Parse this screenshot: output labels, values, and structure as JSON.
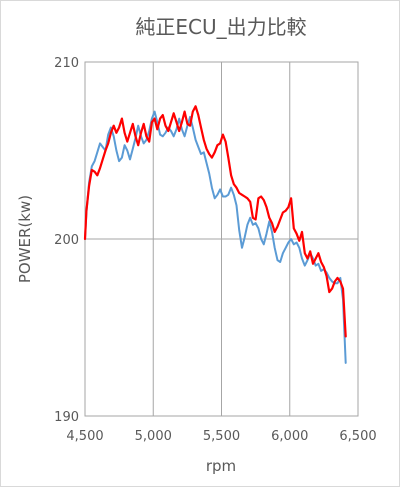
{
  "chart_data": {
    "type": "line",
    "title": "純正ECU_出力比較",
    "xlabel": "rpm",
    "ylabel": "POWER(kw)",
    "xlim": [
      4500,
      6500
    ],
    "ylim": [
      190,
      210
    ],
    "x_ticks": [
      4500,
      5000,
      5500,
      6000,
      6500
    ],
    "x_tick_labels": [
      "4,500",
      "5,000",
      "5,500",
      "6,000",
      "6,500"
    ],
    "y_ticks": [
      190,
      200,
      210
    ],
    "y_tick_labels": [
      "190",
      "200",
      "210"
    ],
    "grid": true,
    "legend": "none",
    "colors": {
      "series_blue": "#5b9bd5",
      "series_red": "#ff0000",
      "grid": "#a6a6a6",
      "text": "#595959"
    },
    "series": [
      {
        "color": "#5b9bd5",
        "points": [
          [
            4500,
            200.0
          ],
          [
            4510,
            201.5
          ],
          [
            4530,
            203.2
          ],
          [
            4550,
            204.1
          ],
          [
            4570,
            204.4
          ],
          [
            4590,
            204.9
          ],
          [
            4610,
            205.4
          ],
          [
            4630,
            205.2
          ],
          [
            4650,
            205.0
          ],
          [
            4670,
            205.9
          ],
          [
            4690,
            206.3
          ],
          [
            4710,
            205.8
          ],
          [
            4730,
            205.0
          ],
          [
            4750,
            204.4
          ],
          [
            4770,
            204.6
          ],
          [
            4790,
            205.3
          ],
          [
            4810,
            205.0
          ],
          [
            4830,
            204.5
          ],
          [
            4850,
            205.1
          ],
          [
            4870,
            205.7
          ],
          [
            4890,
            206.4
          ],
          [
            4910,
            205.8
          ],
          [
            4930,
            205.4
          ],
          [
            4950,
            205.6
          ],
          [
            4970,
            206.1
          ],
          [
            4990,
            206.8
          ],
          [
            5010,
            207.2
          ],
          [
            5030,
            206.6
          ],
          [
            5050,
            205.9
          ],
          [
            5070,
            205.8
          ],
          [
            5090,
            206.0
          ],
          [
            5110,
            206.3
          ],
          [
            5130,
            206.1
          ],
          [
            5150,
            205.8
          ],
          [
            5170,
            206.2
          ],
          [
            5190,
            206.8
          ],
          [
            5210,
            206.2
          ],
          [
            5230,
            205.8
          ],
          [
            5250,
            206.4
          ],
          [
            5270,
            206.9
          ],
          [
            5290,
            206.3
          ],
          [
            5310,
            205.6
          ],
          [
            5330,
            205.2
          ],
          [
            5350,
            204.8
          ],
          [
            5370,
            204.9
          ],
          [
            5390,
            204.3
          ],
          [
            5410,
            203.7
          ],
          [
            5430,
            202.9
          ],
          [
            5450,
            202.3
          ],
          [
            5470,
            202.5
          ],
          [
            5490,
            202.8
          ],
          [
            5510,
            202.4
          ],
          [
            5530,
            202.4
          ],
          [
            5550,
            202.5
          ],
          [
            5570,
            202.9
          ],
          [
            5590,
            202.5
          ],
          [
            5610,
            201.9
          ],
          [
            5630,
            200.5
          ],
          [
            5650,
            199.5
          ],
          [
            5670,
            200.1
          ],
          [
            5690,
            200.8
          ],
          [
            5710,
            201.2
          ],
          [
            5730,
            200.8
          ],
          [
            5750,
            200.9
          ],
          [
            5770,
            200.6
          ],
          [
            5790,
            200.0
          ],
          [
            5810,
            199.7
          ],
          [
            5830,
            200.3
          ],
          [
            5850,
            201.0
          ],
          [
            5870,
            200.4
          ],
          [
            5890,
            199.5
          ],
          [
            5910,
            198.8
          ],
          [
            5930,
            198.7
          ],
          [
            5950,
            199.2
          ],
          [
            5970,
            199.5
          ],
          [
            5990,
            199.8
          ],
          [
            6010,
            200.0
          ],
          [
            6030,
            199.7
          ],
          [
            6050,
            199.8
          ],
          [
            6070,
            199.5
          ],
          [
            6090,
            198.9
          ],
          [
            6110,
            198.5
          ],
          [
            6130,
            198.8
          ],
          [
            6150,
            199.2
          ],
          [
            6170,
            198.9
          ],
          [
            6190,
            198.5
          ],
          [
            6210,
            198.6
          ],
          [
            6230,
            198.2
          ],
          [
            6250,
            198.3
          ],
          [
            6270,
            198.1
          ],
          [
            6290,
            197.8
          ],
          [
            6310,
            197.6
          ],
          [
            6330,
            197.5
          ],
          [
            6350,
            197.5
          ],
          [
            6370,
            197.8
          ],
          [
            6390,
            196.6
          ],
          [
            6410,
            193.0
          ]
        ]
      },
      {
        "color": "#ff0000",
        "points": [
          [
            4500,
            200.0
          ],
          [
            4510,
            201.6
          ],
          [
            4530,
            203.0
          ],
          [
            4550,
            203.9
          ],
          [
            4570,
            203.8
          ],
          [
            4590,
            203.6
          ],
          [
            4610,
            204.0
          ],
          [
            4630,
            204.5
          ],
          [
            4650,
            205.0
          ],
          [
            4670,
            205.4
          ],
          [
            4690,
            206.0
          ],
          [
            4710,
            206.4
          ],
          [
            4730,
            206.0
          ],
          [
            4750,
            206.3
          ],
          [
            4770,
            206.8
          ],
          [
            4790,
            206.0
          ],
          [
            4810,
            205.5
          ],
          [
            4830,
            206.0
          ],
          [
            4850,
            206.5
          ],
          [
            4870,
            205.8
          ],
          [
            4890,
            205.3
          ],
          [
            4910,
            206.0
          ],
          [
            4930,
            206.5
          ],
          [
            4950,
            205.8
          ],
          [
            4970,
            205.5
          ],
          [
            4990,
            206.6
          ],
          [
            5010,
            206.8
          ],
          [
            5030,
            206.2
          ],
          [
            5050,
            206.8
          ],
          [
            5070,
            207.0
          ],
          [
            5090,
            206.4
          ],
          [
            5110,
            206.1
          ],
          [
            5130,
            206.6
          ],
          [
            5150,
            207.1
          ],
          [
            5170,
            206.6
          ],
          [
            5190,
            206.1
          ],
          [
            5210,
            206.6
          ],
          [
            5230,
            207.2
          ],
          [
            5250,
            206.5
          ],
          [
            5270,
            206.4
          ],
          [
            5290,
            207.2
          ],
          [
            5310,
            207.5
          ],
          [
            5330,
            207.0
          ],
          [
            5350,
            206.3
          ],
          [
            5370,
            205.6
          ],
          [
            5390,
            205.1
          ],
          [
            5410,
            204.8
          ],
          [
            5430,
            204.6
          ],
          [
            5450,
            204.9
          ],
          [
            5470,
            205.3
          ],
          [
            5490,
            205.4
          ],
          [
            5510,
            205.9
          ],
          [
            5530,
            205.5
          ],
          [
            5550,
            204.6
          ],
          [
            5570,
            203.6
          ],
          [
            5590,
            203.1
          ],
          [
            5610,
            202.9
          ],
          [
            5630,
            202.6
          ],
          [
            5650,
            202.5
          ],
          [
            5670,
            202.4
          ],
          [
            5690,
            202.3
          ],
          [
            5710,
            202.1
          ],
          [
            5730,
            201.2
          ],
          [
            5750,
            201.1
          ],
          [
            5770,
            202.3
          ],
          [
            5790,
            202.4
          ],
          [
            5810,
            202.2
          ],
          [
            5830,
            201.8
          ],
          [
            5850,
            201.2
          ],
          [
            5870,
            200.9
          ],
          [
            5890,
            200.4
          ],
          [
            5910,
            200.7
          ],
          [
            5930,
            201.1
          ],
          [
            5950,
            201.5
          ],
          [
            5970,
            201.6
          ],
          [
            5990,
            201.8
          ],
          [
            6010,
            202.3
          ],
          [
            6030,
            200.6
          ],
          [
            6050,
            200.3
          ],
          [
            6070,
            199.9
          ],
          [
            6090,
            200.4
          ],
          [
            6110,
            199.2
          ],
          [
            6130,
            198.9
          ],
          [
            6150,
            199.3
          ],
          [
            6170,
            198.6
          ],
          [
            6190,
            198.9
          ],
          [
            6210,
            199.2
          ],
          [
            6230,
            198.7
          ],
          [
            6250,
            198.4
          ],
          [
            6270,
            197.9
          ],
          [
            6290,
            197.0
          ],
          [
            6310,
            197.2
          ],
          [
            6330,
            197.6
          ],
          [
            6350,
            197.8
          ],
          [
            6370,
            197.6
          ],
          [
            6390,
            197.2
          ],
          [
            6410,
            194.5
          ]
        ]
      }
    ]
  }
}
